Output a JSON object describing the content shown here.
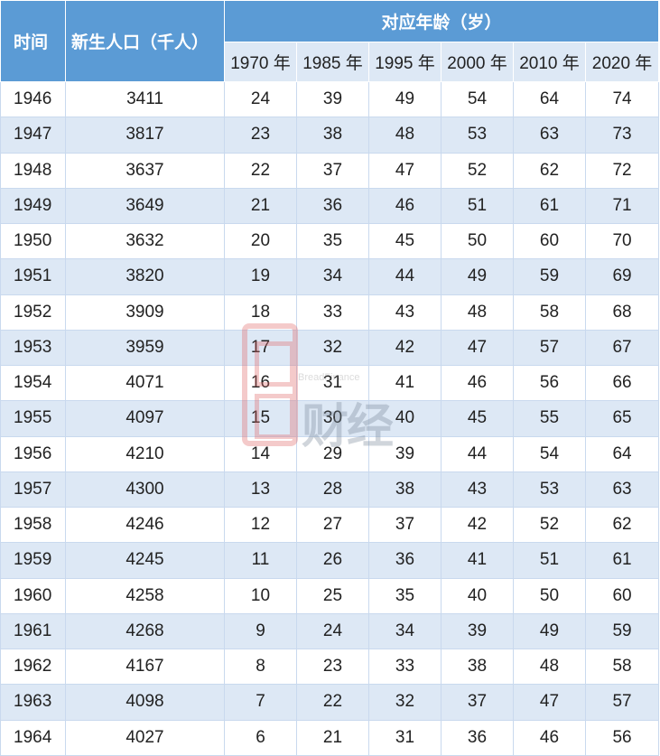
{
  "header": {
    "time": "时间",
    "births": "新生人口（千人）",
    "age_group": "对应年龄（岁）",
    "years": [
      "1970 年",
      "1985 年",
      "1995 年",
      "2000 年",
      "2010 年",
      "2020 年"
    ]
  },
  "rows": [
    [
      "1946",
      "3411",
      "24",
      "39",
      "49",
      "54",
      "64",
      "74"
    ],
    [
      "1947",
      "3817",
      "23",
      "38",
      "48",
      "53",
      "63",
      "73"
    ],
    [
      "1948",
      "3637",
      "22",
      "37",
      "47",
      "52",
      "62",
      "72"
    ],
    [
      "1949",
      "3649",
      "21",
      "36",
      "46",
      "51",
      "61",
      "71"
    ],
    [
      "1950",
      "3632",
      "20",
      "35",
      "45",
      "50",
      "60",
      "70"
    ],
    [
      "1951",
      "3820",
      "19",
      "34",
      "44",
      "49",
      "59",
      "69"
    ],
    [
      "1952",
      "3909",
      "18",
      "33",
      "43",
      "48",
      "58",
      "68"
    ],
    [
      "1953",
      "3959",
      "17",
      "32",
      "42",
      "47",
      "57",
      "67"
    ],
    [
      "1954",
      "4071",
      "16",
      "31",
      "41",
      "46",
      "56",
      "66"
    ],
    [
      "1955",
      "4097",
      "15",
      "30",
      "40",
      "45",
      "55",
      "65"
    ],
    [
      "1956",
      "4210",
      "14",
      "29",
      "39",
      "44",
      "54",
      "64"
    ],
    [
      "1957",
      "4300",
      "13",
      "28",
      "38",
      "43",
      "53",
      "63"
    ],
    [
      "1958",
      "4246",
      "12",
      "27",
      "37",
      "42",
      "52",
      "62"
    ],
    [
      "1959",
      "4245",
      "11",
      "26",
      "36",
      "41",
      "51",
      "61"
    ],
    [
      "1960",
      "4258",
      "10",
      "25",
      "35",
      "40",
      "50",
      "60"
    ],
    [
      "1961",
      "4268",
      "9",
      "24",
      "34",
      "39",
      "49",
      "59"
    ],
    [
      "1962",
      "4167",
      "8",
      "23",
      "33",
      "38",
      "48",
      "58"
    ],
    [
      "1963",
      "4098",
      "7",
      "22",
      "32",
      "37",
      "47",
      "57"
    ],
    [
      "1964",
      "4027",
      "6",
      "21",
      "31",
      "36",
      "46",
      "56"
    ]
  ],
  "watermark": {
    "en": "BreadFinance",
    "cn": "财经"
  },
  "colors": {
    "header": "#5b9bd5",
    "stripe": "#dde8f5"
  }
}
